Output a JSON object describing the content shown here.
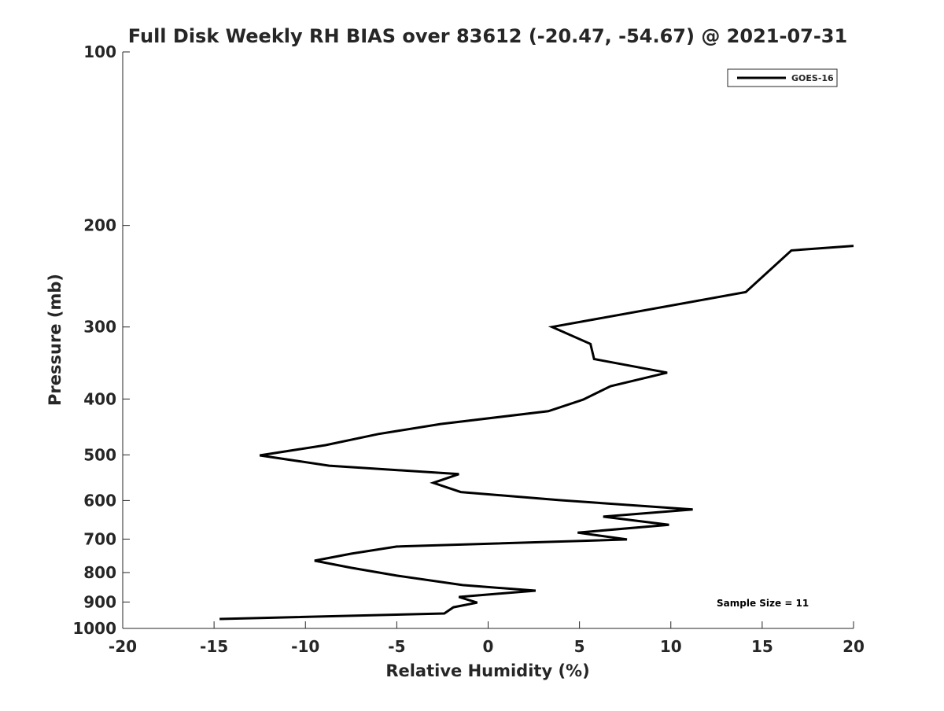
{
  "chart_data": {
    "type": "line",
    "title": "Full Disk Weekly RH BIAS over 83612 (-20.47, -54.67) @ 2021-07-31",
    "xlabel": "Relative Humidity (%)",
    "ylabel": "Pressure (mb)",
    "xlim": [
      -20,
      20
    ],
    "ylim": [
      100,
      1000
    ],
    "yscale": "log",
    "y_reversed": true,
    "grid": false,
    "x_ticks": [
      "-20",
      "-15",
      "-10",
      "-5",
      "0",
      "5",
      "10",
      "15",
      "20"
    ],
    "y_ticks": [
      "100",
      "200",
      "300",
      "400",
      "500",
      "600",
      "700",
      "800",
      "900",
      "1000"
    ],
    "legend": {
      "position": "top-right",
      "entries": [
        "GOES-16"
      ]
    },
    "annotation": "Sample Size = 11",
    "series": [
      {
        "name": "GOES-16",
        "color": "#000000",
        "pressure": [
          217,
          221,
          261,
          300,
          321,
          341,
          360,
          380,
          401,
          420,
          442,
          460,
          481,
          501,
          522,
          540,
          559,
          580,
          599,
          622,
          640,
          661,
          682,
          701,
          721,
          742,
          763,
          785,
          810,
          841,
          860,
          882,
          902,
          919,
          942,
          963
        ],
        "values": [
          20.0,
          16.6,
          14.1,
          3.5,
          5.6,
          5.8,
          9.8,
          6.7,
          5.2,
          3.3,
          -2.6,
          -6.0,
          -8.9,
          -12.5,
          -8.7,
          -1.6,
          -3.0,
          -1.5,
          3.9,
          11.2,
          6.3,
          9.9,
          4.9,
          7.6,
          -5.0,
          -7.5,
          -9.5,
          -7.5,
          -5.0,
          -1.4,
          2.6,
          -1.6,
          -0.6,
          -1.9,
          -2.4,
          -14.7
        ]
      }
    ]
  }
}
